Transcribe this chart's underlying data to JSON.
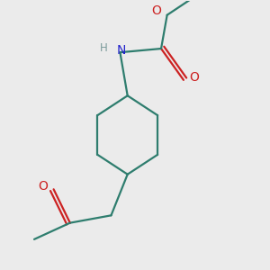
{
  "background_color": "#ebebeb",
  "bond_color": "#2e7d6e",
  "N_color": "#2222cc",
  "O_color": "#cc2222",
  "H_color": "#7a9a9a",
  "line_width": 1.6,
  "figsize": [
    3.0,
    3.0
  ],
  "dpi": 100,
  "xlim": [
    -1.6,
    1.8
  ],
  "ylim": [
    -1.9,
    1.7
  ]
}
